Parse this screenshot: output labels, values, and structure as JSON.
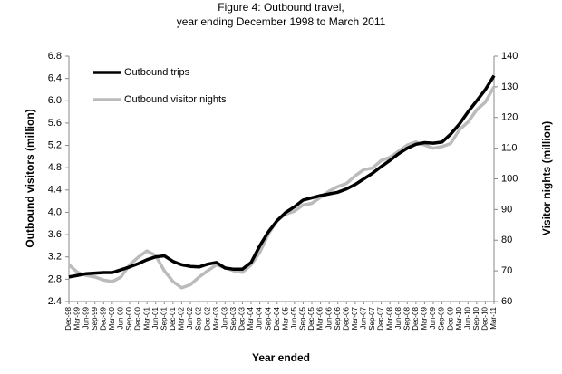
{
  "chart_data": {
    "type": "line",
    "title": "Figure 4: Outbound travel,",
    "subtitle": "year ending December 1998 to March 2011",
    "x_label": "Year ended",
    "y_label": "Outbound visitors (million)",
    "y2_label": "Visitor nights (million)",
    "categories": [
      "Dec-98",
      "Mar-99",
      "Jun-99",
      "Sep-99",
      "Dec-99",
      "Mar-00",
      "Jun-00",
      "Sep-00",
      "Dec-00",
      "Mar-01",
      "Jun-01",
      "Sep-01",
      "Dec-01",
      "Mar-02",
      "Jun-02",
      "Sep-02",
      "Dec-02",
      "Mar-03",
      "Jun-03",
      "Sep-03",
      "Dec-03",
      "Mar-04",
      "Jun-04",
      "Sep-04",
      "Dec-04",
      "Mar-05",
      "Jun-05",
      "Sep-05",
      "Dec-05",
      "Mar-06",
      "Jun-06",
      "Sep-06",
      "Dec-06",
      "Mar-07",
      "Jun-07",
      "Sep-07",
      "Dec-07",
      "Mar-08",
      "Jun-08",
      "Sep-08",
      "Dec-08",
      "Mar-09",
      "Jun-09",
      "Sep-09",
      "Dec-09",
      "Mar-10",
      "Jun-10",
      "Sep-10",
      "Dec-10",
      "Mar-11"
    ],
    "series": [
      {
        "name": "Outbound trips",
        "color": "#000000",
        "values": [
          2.84,
          2.87,
          2.9,
          2.91,
          2.92,
          2.92,
          2.97,
          3.02,
          3.08,
          3.15,
          3.2,
          3.22,
          3.12,
          3.06,
          3.03,
          3.02,
          3.07,
          3.1,
          3.0,
          2.98,
          2.98,
          3.1,
          3.4,
          3.65,
          3.85,
          4.0,
          4.1,
          4.22,
          4.26,
          4.3,
          4.33,
          4.36,
          4.42,
          4.5,
          4.6,
          4.7,
          4.82,
          4.93,
          5.05,
          5.15,
          5.22,
          5.25,
          5.24,
          5.26,
          5.4,
          5.58,
          5.8,
          6.0,
          6.2,
          6.45
        ]
      },
      {
        "name": "Outbound visitor nights",
        "color": "#bbbbbb",
        "axis": "y2",
        "values": [
          72,
          69.5,
          68.5,
          68,
          67,
          66.5,
          68,
          72,
          74.5,
          76.5,
          75,
          70,
          66.5,
          64.5,
          65.5,
          68,
          70,
          72,
          71,
          70,
          69.5,
          72,
          76,
          82,
          86.5,
          88.5,
          89.5,
          91.5,
          92,
          94,
          96,
          97.5,
          98.5,
          101,
          103,
          103.5,
          106,
          107,
          109,
          111,
          112,
          111,
          110,
          110.5,
          111.5,
          116,
          118.5,
          122.5,
          125,
          130
        ]
      }
    ],
    "ylim": [
      2.4,
      6.8
    ],
    "yticks": [
      2.4,
      2.8,
      3.2,
      3.6,
      {
        "value": 4,
        "label": "4.0"
      },
      4.4,
      4.8,
      5.2,
      5.6,
      {
        "value": 6,
        "label": "6.0"
      },
      6.4,
      6.8
    ],
    "y2lim": [
      60,
      140
    ],
    "y2ticks": [
      60,
      70,
      80,
      90,
      100,
      110,
      120,
      130,
      140
    ],
    "legend": "upper left"
  }
}
